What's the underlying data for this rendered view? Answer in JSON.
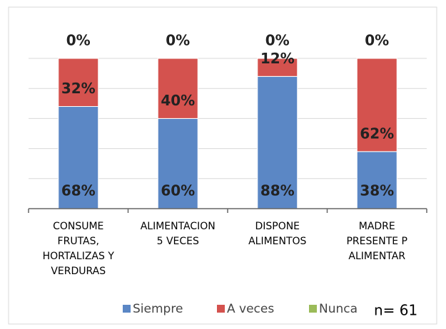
{
  "chart_data": {
    "type": "stacked_bar",
    "categories": [
      "CONSUME\nFRUTAS,\nHORTALIZAS Y\nVERDURAS",
      "ALIMENTACION\n5 VECES",
      "DISPONE\nALIMENTOS",
      "MADRE\nPRESENTE P\nALIMENTAR"
    ],
    "series": [
      {
        "name": "Siempre",
        "color": "#5b87c5",
        "values": [
          68,
          60,
          88,
          38
        ],
        "value_labels": [
          "68%",
          "60%",
          "88%",
          "38%"
        ]
      },
      {
        "name": "A veces",
        "color": "#d4524e",
        "values": [
          32,
          40,
          12,
          62
        ],
        "value_labels": [
          "32%",
          "40%",
          "12%",
          "62%"
        ]
      },
      {
        "name": "Nunca",
        "color": "#9bbb59",
        "values": [
          0,
          0,
          0,
          0
        ],
        "value_labels": [
          "0%",
          "0%",
          "0%",
          "0%"
        ]
      }
    ],
    "ylim": [
      0,
      100
    ],
    "yticks": [
      0,
      20,
      40,
      60,
      80,
      100
    ],
    "grid": true,
    "annotation": "n= 61"
  }
}
